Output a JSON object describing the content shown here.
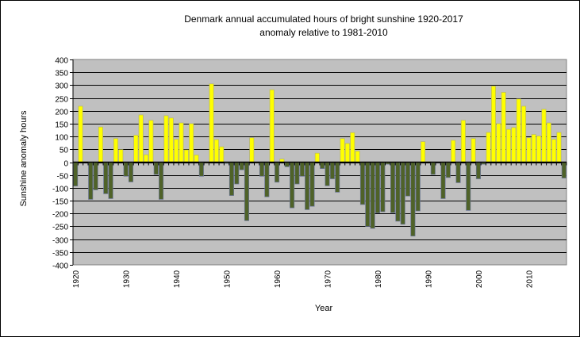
{
  "chart_data": {
    "type": "bar",
    "title": "Denmark annual accumulated hours of bright sunshine 1920-2017",
    "subtitle": "anomaly relative to 1981-2010",
    "xlabel": "Year",
    "ylabel": "Sunshine anomaly hours",
    "ylim": [
      -400,
      400
    ],
    "ytick_step": 50,
    "yticks": [
      "400",
      "350",
      "300",
      "250",
      "200",
      "150",
      "100",
      "50",
      "0",
      "-50",
      "-100",
      "-150",
      "-200",
      "-250",
      "-300",
      "-350",
      "-400"
    ],
    "xtick_labels": [
      "1920",
      "1930",
      "1940",
      "1950",
      "1960",
      "1970",
      "1980",
      "1990",
      "2000",
      "2010"
    ],
    "grid": true,
    "legend": "none",
    "colors": {
      "positive": "#FFFF00",
      "negative": "#4F6228",
      "plot_background": "#C0C0C0",
      "gridline": "#000000"
    },
    "x": [
      1920,
      1921,
      1922,
      1923,
      1924,
      1925,
      1926,
      1927,
      1928,
      1929,
      1930,
      1931,
      1932,
      1933,
      1934,
      1935,
      1936,
      1937,
      1938,
      1939,
      1940,
      1941,
      1942,
      1943,
      1944,
      1945,
      1946,
      1947,
      1948,
      1949,
      1950,
      1951,
      1952,
      1953,
      1954,
      1955,
      1956,
      1957,
      1958,
      1959,
      1960,
      1961,
      1962,
      1963,
      1964,
      1965,
      1966,
      1967,
      1968,
      1969,
      1970,
      1971,
      1972,
      1973,
      1974,
      1975,
      1976,
      1977,
      1978,
      1979,
      1980,
      1981,
      1982,
      1983,
      1984,
      1985,
      1986,
      1987,
      1988,
      1989,
      1990,
      1991,
      1992,
      1993,
      1994,
      1995,
      1996,
      1997,
      1998,
      1999,
      2000,
      2001,
      2002,
      2003,
      2004,
      2005,
      2006,
      2007,
      2008,
      2009,
      2010,
      2011,
      2012,
      2013,
      2014,
      2015,
      2016,
      2017
    ],
    "values": [
      -93,
      218,
      2,
      -145,
      -108,
      137,
      -123,
      -142,
      92,
      49,
      -55,
      -77,
      105,
      184,
      29,
      163,
      -48,
      -145,
      181,
      172,
      89,
      153,
      48,
      150,
      28,
      -55,
      0,
      305,
      88,
      60,
      -5,
      -130,
      -85,
      -30,
      -228,
      95,
      0,
      -55,
      -135,
      282,
      -78,
      12,
      -18,
      -178,
      -85,
      -55,
      -185,
      -172,
      35,
      -25,
      -92,
      -65,
      -117,
      92,
      73,
      115,
      43,
      -165,
      -250,
      -258,
      -198,
      -193,
      -8,
      -197,
      -230,
      -242,
      -132,
      -288,
      -190,
      80,
      2,
      -48,
      -2,
      -142,
      -60,
      85,
      -80,
      163,
      -188,
      92,
      -65,
      -8,
      116,
      296,
      150,
      272,
      128,
      135,
      246,
      218,
      95,
      108,
      102,
      206,
      153,
      89,
      116,
      -62
    ]
  }
}
